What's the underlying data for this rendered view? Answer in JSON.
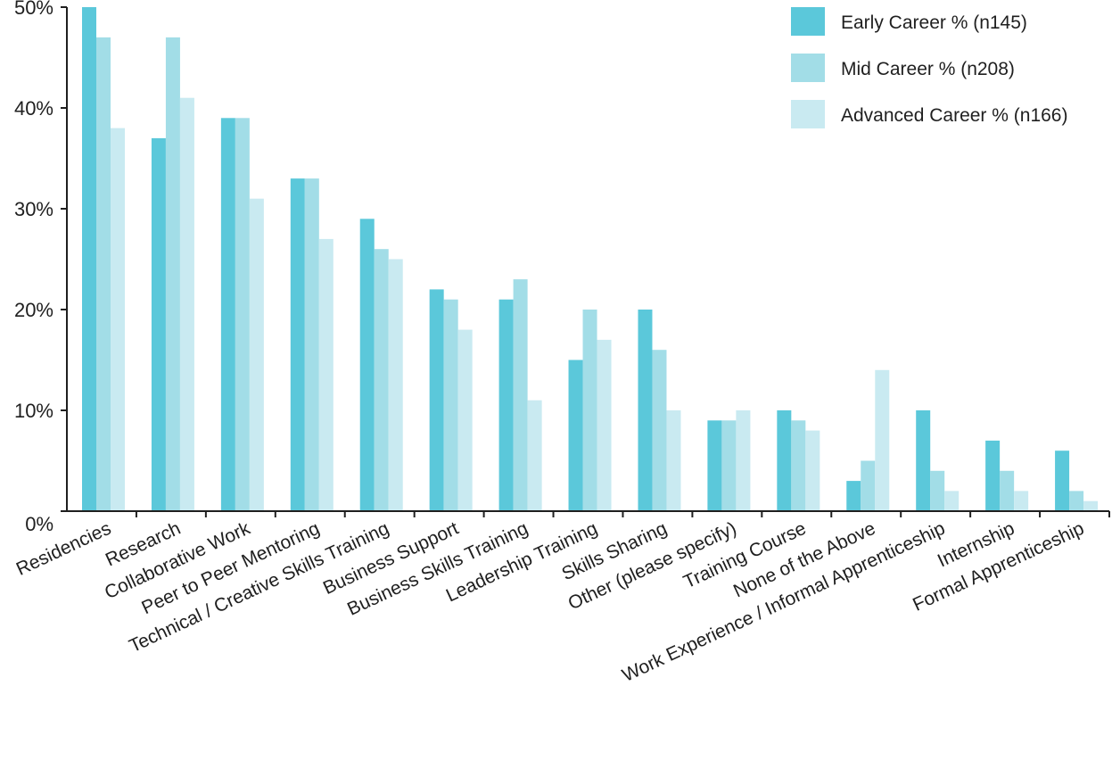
{
  "chart_data": {
    "type": "bar",
    "title": "",
    "xlabel": "",
    "ylabel": "",
    "ylim": [
      0,
      50
    ],
    "yticks": [
      "0%",
      "10%",
      "20%",
      "30%",
      "40%",
      "50%"
    ],
    "grid": false,
    "legend_position": "top-right",
    "categories": [
      "Residencies",
      "Research",
      "Collaborative Work",
      "Peer to Peer Mentoring",
      "Technical / Creative Skills Training",
      "Business Support",
      "Business Skills Training",
      "Leadership Training",
      "Skills Sharing",
      "Other (please specify)",
      "Training Course",
      "None of the Above",
      "Work Experience / Informal Apprenticeship",
      "Internship",
      "Formal Apprenticeship"
    ],
    "series": [
      {
        "name": "Early Career % (n145)",
        "color": "#5bc8da",
        "values": [
          50,
          37,
          39,
          33,
          29,
          22,
          21,
          15,
          20,
          9,
          10,
          3,
          10,
          7,
          6
        ]
      },
      {
        "name": "Mid Career % (n208)",
        "color": "#a2dde7",
        "values": [
          47,
          47,
          39,
          33,
          26,
          21,
          23,
          20,
          16,
          9,
          9,
          5,
          4,
          4,
          2
        ]
      },
      {
        "name": "Advanced Career % (n166)",
        "color": "#c9eaf1",
        "values": [
          38,
          41,
          31,
          27,
          25,
          18,
          11,
          17,
          10,
          10,
          8,
          14,
          2,
          2,
          1
        ]
      }
    ]
  }
}
